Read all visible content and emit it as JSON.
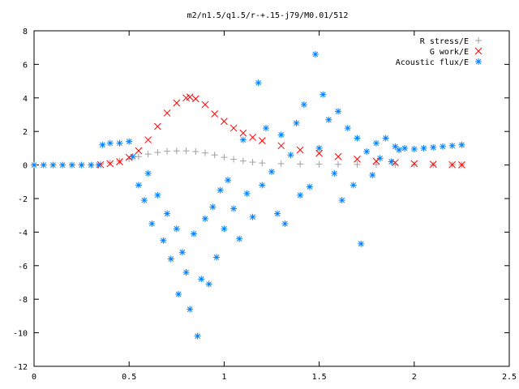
{
  "chart_data": {
    "type": "scatter",
    "title": "m2/n1.5/q1.5/r-+.15-j79/M0.01/512",
    "xlabel": "",
    "ylabel": "",
    "xlim": [
      0,
      2.5
    ],
    "ylim": [
      -12,
      8
    ],
    "x_ticks": [
      0,
      0.5,
      1,
      1.5,
      2,
      2.5
    ],
    "x_tick_labels": [
      "0",
      "0.5",
      "1",
      "1.5",
      "2",
      "2.5"
    ],
    "y_ticks": [
      -12,
      -10,
      -8,
      -6,
      -4,
      -2,
      0,
      2,
      4,
      6,
      8
    ],
    "y_tick_labels": [
      "-12",
      "-10",
      "-8",
      "-6",
      "-4",
      "-2",
      "0",
      "2",
      "4",
      "6",
      "8"
    ],
    "grid": false,
    "legend_position": "top-right",
    "series": [
      {
        "name": "R stress/E",
        "marker": "plus",
        "color": "#a0a0a0",
        "x": [
          0.35,
          0.4,
          0.45,
          0.5,
          0.55,
          0.6,
          0.65,
          0.7,
          0.75,
          0.8,
          0.85,
          0.9,
          0.95,
          1.0,
          1.05,
          1.1,
          1.15,
          1.2,
          1.3,
          1.4,
          1.5,
          1.6,
          1.7,
          1.8,
          1.9,
          2.0,
          2.1,
          2.2,
          2.25
        ],
        "y": [
          0.05,
          0.12,
          0.22,
          0.36,
          0.5,
          0.65,
          0.75,
          0.82,
          0.84,
          0.84,
          0.8,
          0.72,
          0.6,
          0.46,
          0.34,
          0.24,
          0.17,
          0.12,
          0.08,
          0.06,
          0.05,
          0.04,
          0.03,
          0.03,
          0.02,
          0.02,
          0.01,
          0.01,
          0.01
        ]
      },
      {
        "name": "G work/E",
        "marker": "cross",
        "color": "#ff0000",
        "x": [
          0.35,
          0.4,
          0.45,
          0.5,
          0.55,
          0.6,
          0.65,
          0.7,
          0.75,
          0.8,
          0.82,
          0.85,
          0.9,
          0.95,
          1.0,
          1.05,
          1.1,
          1.15,
          1.2,
          1.3,
          1.4,
          1.5,
          1.6,
          1.7,
          1.8,
          1.9,
          2.0,
          2.1,
          2.2,
          2.25
        ],
        "y": [
          0.02,
          0.08,
          0.2,
          0.45,
          0.85,
          1.5,
          2.3,
          3.1,
          3.7,
          4.0,
          4.05,
          3.95,
          3.6,
          3.05,
          2.6,
          2.2,
          1.9,
          1.65,
          1.45,
          1.15,
          0.9,
          0.7,
          0.5,
          0.35,
          0.23,
          0.14,
          0.08,
          0.04,
          0.02,
          0.01
        ]
      },
      {
        "name": "Acoustic flux/E",
        "marker": "star",
        "color": "#0080ff",
        "x": [
          0,
          0.05,
          0.1,
          0.15,
          0.2,
          0.25,
          0.3,
          0.34,
          0.36,
          0.4,
          0.45,
          0.5,
          0.52,
          0.55,
          0.58,
          0.6,
          0.62,
          0.65,
          0.68,
          0.7,
          0.72,
          0.75,
          0.76,
          0.78,
          0.8,
          0.82,
          0.84,
          0.86,
          0.88,
          0.9,
          0.92,
          0.94,
          0.96,
          0.98,
          1.0,
          1.02,
          1.05,
          1.08,
          1.1,
          1.12,
          1.15,
          1.18,
          1.2,
          1.22,
          1.25,
          1.28,
          1.3,
          1.32,
          1.35,
          1.38,
          1.4,
          1.42,
          1.45,
          1.48,
          1.5,
          1.52,
          1.55,
          1.58,
          1.6,
          1.62,
          1.65,
          1.68,
          1.7,
          1.72,
          1.75,
          1.78,
          1.8,
          1.82,
          1.85,
          1.88,
          1.9,
          1.92,
          1.95,
          2.0,
          2.05,
          2.1,
          2.15,
          2.2,
          2.25
        ],
        "y": [
          0,
          0,
          0,
          0,
          0,
          0,
          0,
          0,
          1.2,
          1.3,
          1.3,
          1.4,
          0.5,
          -1.2,
          -2.1,
          -0.5,
          -3.5,
          -1.8,
          -4.5,
          -2.9,
          -5.6,
          -3.8,
          -7.7,
          -5.2,
          -6.4,
          -8.6,
          -4.1,
          -10.2,
          -6.8,
          -3.2,
          -7.1,
          -2.5,
          -5.5,
          -1.5,
          -3.8,
          -0.9,
          -2.6,
          -4.4,
          1.5,
          -1.7,
          -3.1,
          4.9,
          -1.2,
          2.2,
          -0.4,
          -2.9,
          1.8,
          -3.5,
          0.6,
          2.5,
          -1.8,
          3.6,
          -1.3,
          6.6,
          1.0,
          4.2,
          2.7,
          -0.5,
          3.2,
          -2.1,
          2.2,
          -1.2,
          1.6,
          -4.7,
          0.8,
          -0.6,
          1.3,
          0.4,
          1.6,
          0.2,
          1.1,
          0.9,
          1.0,
          0.95,
          1.0,
          1.05,
          1.1,
          1.15,
          1.2
        ]
      }
    ]
  }
}
